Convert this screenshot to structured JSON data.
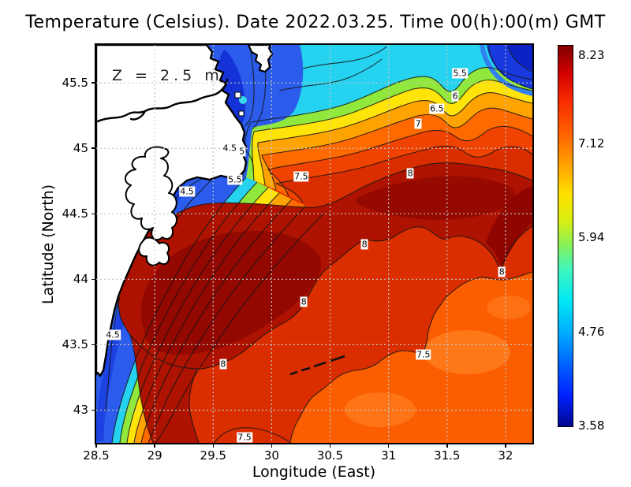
{
  "chart_data": {
    "type": "heatmap",
    "title": "Temperature (Celsius). Date 2022.03.25. Time 00(h):00(m) GMT",
    "xlabel": "Longitude (East)",
    "ylabel": "Latitude (North)",
    "annotation": "Z = 2.5 m",
    "grid": true,
    "xlim": [
      28.5,
      32.23
    ],
    "ylim": [
      42.75,
      45.79
    ],
    "x_ticks": [
      {
        "v": 28.5,
        "label": "28.5"
      },
      {
        "v": 29,
        "label": "29"
      },
      {
        "v": 29.5,
        "label": "29.5"
      },
      {
        "v": 30,
        "label": "30"
      },
      {
        "v": 30.5,
        "label": "30.5"
      },
      {
        "v": 31,
        "label": "31"
      },
      {
        "v": 31.5,
        "label": "31.5"
      },
      {
        "v": 32,
        "label": "32"
      }
    ],
    "y_ticks": [
      {
        "v": 45.5,
        "label": "45.5"
      },
      {
        "v": 45,
        "label": "45"
      },
      {
        "v": 44.5,
        "label": "44.5"
      },
      {
        "v": 44,
        "label": "44"
      },
      {
        "v": 43.5,
        "label": "43.5"
      },
      {
        "v": 43,
        "label": "43"
      }
    ],
    "colorbar": {
      "colormap": "jet",
      "min": 3.58,
      "max": 8.23,
      "labels": [
        "8.23",
        "7.12",
        "5.94",
        "4.76",
        "3.58"
      ]
    },
    "contour_levels": [
      4.5,
      5,
      5.5,
      6,
      6.5,
      7,
      7.5,
      8
    ],
    "contour_labels": [
      {
        "text": "5.5",
        "fx": 0.834,
        "fy": 0.071
      },
      {
        "text": "6",
        "fx": 0.823,
        "fy": 0.129
      },
      {
        "text": "6.5",
        "fx": 0.781,
        "fy": 0.16
      },
      {
        "text": "7",
        "fx": 0.738,
        "fy": 0.198
      },
      {
        "text": "7.5",
        "fx": 0.47,
        "fy": 0.331
      },
      {
        "text": "8",
        "fx": 0.72,
        "fy": 0.323
      },
      {
        "text": "8",
        "fx": 0.615,
        "fy": 0.501
      },
      {
        "text": "8",
        "fx": 0.93,
        "fy": 0.57
      },
      {
        "text": "8",
        "fx": 0.476,
        "fy": 0.645
      },
      {
        "text": "8",
        "fx": 0.291,
        "fy": 0.802
      },
      {
        "text": "4.5",
        "fx": 0.306,
        "fy": 0.259
      },
      {
        "text": "5",
        "fx": 0.334,
        "fy": 0.267
      },
      {
        "text": "5.5",
        "fx": 0.318,
        "fy": 0.339
      },
      {
        "text": "4.5",
        "fx": 0.208,
        "fy": 0.368
      },
      {
        "text": "4.5",
        "fx": 0.038,
        "fy": 0.729
      },
      {
        "text": "7.5",
        "fx": 0.75,
        "fy": 0.778
      },
      {
        "text": "7.5",
        "fx": 0.34,
        "fy": 0.986
      }
    ],
    "field_description": "Sea surface temperature: warm dark-red water (~8 C) in the south and center, cold blue water (~3.6-4.5 C) along the western coast and in the north; land shown white with black coastline"
  }
}
